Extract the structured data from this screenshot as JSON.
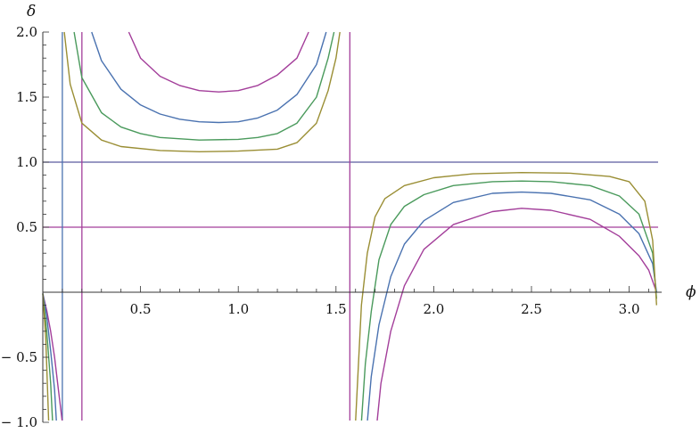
{
  "chart_data": {
    "type": "line",
    "xlabel": "ϕ",
    "ylabel": "δ",
    "xlim": [
      0,
      3.2
    ],
    "ylim": [
      -1.0,
      2.0
    ],
    "grid": false,
    "x_ticks": [
      {
        "value": 0.5,
        "label": "0.5"
      },
      {
        "value": 1.0,
        "label": "1.0"
      },
      {
        "value": 1.5,
        "label": "1.5"
      },
      {
        "value": 2.0,
        "label": "2.0"
      },
      {
        "value": 2.5,
        "label": "2.5"
      },
      {
        "value": 3.0,
        "label": "3.0"
      }
    ],
    "y_ticks": [
      {
        "value": -1.0,
        "label": "− 1.0"
      },
      {
        "value": -0.5,
        "label": "− 0.5"
      },
      {
        "value": 0.5,
        "label": "0.5"
      },
      {
        "value": 1.0,
        "label": "1.0"
      },
      {
        "value": 1.5,
        "label": "1.5"
      },
      {
        "value": 2.0,
        "label": "2.0"
      }
    ],
    "horizontal_lines": [
      {
        "y": 1.0,
        "color": "#5a5a9f"
      },
      {
        "y": 0.5,
        "color": "#a33e9a"
      }
    ],
    "vertical_lines": [
      {
        "x": 0.1,
        "color": "#4a72b0"
      },
      {
        "x": 0.2,
        "color": "#a33e9a"
      },
      {
        "x": 1.5708,
        "color": "#a33e9a"
      }
    ],
    "series": [
      {
        "color": "#a33e9a",
        "segments": [
          [
            [
              0.0,
              -0.01
            ],
            [
              0.02,
              -0.14
            ],
            [
              0.04,
              -0.3
            ],
            [
              0.06,
              -0.5
            ],
            [
              0.08,
              -0.75
            ],
            [
              0.1,
              -1.0
            ]
          ],
          [
            [
              0.44,
              2.0
            ],
            [
              0.5,
              1.8
            ],
            [
              0.6,
              1.66
            ],
            [
              0.7,
              1.59
            ],
            [
              0.8,
              1.55
            ],
            [
              0.9,
              1.54
            ],
            [
              1.0,
              1.55
            ],
            [
              1.1,
              1.59
            ],
            [
              1.2,
              1.67
            ],
            [
              1.3,
              1.8
            ],
            [
              1.36,
              2.0
            ]
          ],
          [
            [
              1.71,
              -1.0
            ],
            [
              1.73,
              -0.7
            ],
            [
              1.78,
              -0.3
            ],
            [
              1.85,
              0.05
            ],
            [
              1.95,
              0.33
            ],
            [
              2.1,
              0.52
            ],
            [
              2.3,
              0.62
            ],
            [
              2.45,
              0.645
            ],
            [
              2.6,
              0.63
            ],
            [
              2.8,
              0.56
            ],
            [
              2.95,
              0.43
            ],
            [
              3.05,
              0.28
            ],
            [
              3.1,
              0.17
            ],
            [
              3.14,
              0.0
            ]
          ]
        ]
      },
      {
        "color": "#4a72b0",
        "segments": [
          [
            [
              0.0,
              -0.01
            ],
            [
              0.02,
              -0.18
            ],
            [
              0.04,
              -0.45
            ],
            [
              0.06,
              -0.75
            ],
            [
              0.07,
              -1.0
            ]
          ],
          [
            [
              0.25,
              2.0
            ],
            [
              0.3,
              1.78
            ],
            [
              0.4,
              1.56
            ],
            [
              0.5,
              1.44
            ],
            [
              0.6,
              1.37
            ],
            [
              0.7,
              1.33
            ],
            [
              0.8,
              1.31
            ],
            [
              0.9,
              1.305
            ],
            [
              1.0,
              1.31
            ],
            [
              1.1,
              1.34
            ],
            [
              1.2,
              1.4
            ],
            [
              1.3,
              1.52
            ],
            [
              1.4,
              1.75
            ],
            [
              1.45,
              2.0
            ]
          ],
          [
            [
              1.66,
              -1.0
            ],
            [
              1.68,
              -0.65
            ],
            [
              1.72,
              -0.25
            ],
            [
              1.78,
              0.12
            ],
            [
              1.85,
              0.37
            ],
            [
              1.95,
              0.55
            ],
            [
              2.1,
              0.69
            ],
            [
              2.3,
              0.76
            ],
            [
              2.45,
              0.77
            ],
            [
              2.6,
              0.76
            ],
            [
              2.8,
              0.71
            ],
            [
              2.95,
              0.6
            ],
            [
              3.05,
              0.45
            ],
            [
              3.12,
              0.22
            ],
            [
              3.14,
              0.0
            ]
          ]
        ]
      },
      {
        "color": "#4a9a5c",
        "segments": [
          [
            [
              0.0,
              -0.01
            ],
            [
              0.02,
              -0.3
            ],
            [
              0.04,
              -0.7
            ],
            [
              0.05,
              -1.0
            ]
          ],
          [
            [
              0.16,
              2.0
            ],
            [
              0.2,
              1.65
            ],
            [
              0.3,
              1.38
            ],
            [
              0.4,
              1.27
            ],
            [
              0.5,
              1.22
            ],
            [
              0.6,
              1.19
            ],
            [
              0.8,
              1.17
            ],
            [
              1.0,
              1.175
            ],
            [
              1.1,
              1.19
            ],
            [
              1.2,
              1.22
            ],
            [
              1.3,
              1.3
            ],
            [
              1.4,
              1.5
            ],
            [
              1.46,
              1.8
            ],
            [
              1.49,
              2.0
            ]
          ],
          [
            [
              1.63,
              -1.0
            ],
            [
              1.65,
              -0.55
            ],
            [
              1.68,
              -0.15
            ],
            [
              1.72,
              0.25
            ],
            [
              1.78,
              0.52
            ],
            [
              1.85,
              0.66
            ],
            [
              1.95,
              0.75
            ],
            [
              2.1,
              0.82
            ],
            [
              2.3,
              0.85
            ],
            [
              2.45,
              0.855
            ],
            [
              2.6,
              0.85
            ],
            [
              2.8,
              0.82
            ],
            [
              2.95,
              0.74
            ],
            [
              3.05,
              0.6
            ],
            [
              3.12,
              0.3
            ],
            [
              3.14,
              -0.05
            ]
          ]
        ]
      },
      {
        "color": "#9a8e34",
        "segments": [
          [
            [
              0.0,
              -0.01
            ],
            [
              0.015,
              -0.35
            ],
            [
              0.03,
              -1.0
            ]
          ],
          [
            [
              0.11,
              2.0
            ],
            [
              0.14,
              1.6
            ],
            [
              0.2,
              1.3
            ],
            [
              0.3,
              1.17
            ],
            [
              0.4,
              1.12
            ],
            [
              0.6,
              1.09
            ],
            [
              0.8,
              1.08
            ],
            [
              1.0,
              1.085
            ],
            [
              1.2,
              1.1
            ],
            [
              1.3,
              1.15
            ],
            [
              1.4,
              1.3
            ],
            [
              1.46,
              1.55
            ],
            [
              1.5,
              1.8
            ],
            [
              1.52,
              2.0
            ]
          ],
          [
            [
              1.6,
              -1.0
            ],
            [
              1.615,
              -0.55
            ],
            [
              1.63,
              -0.1
            ],
            [
              1.66,
              0.3
            ],
            [
              1.7,
              0.58
            ],
            [
              1.75,
              0.72
            ],
            [
              1.85,
              0.82
            ],
            [
              2.0,
              0.88
            ],
            [
              2.2,
              0.91
            ],
            [
              2.45,
              0.92
            ],
            [
              2.7,
              0.915
            ],
            [
              2.9,
              0.89
            ],
            [
              3.0,
              0.85
            ],
            [
              3.08,
              0.7
            ],
            [
              3.12,
              0.4
            ],
            [
              3.14,
              -0.1
            ]
          ]
        ]
      }
    ]
  }
}
